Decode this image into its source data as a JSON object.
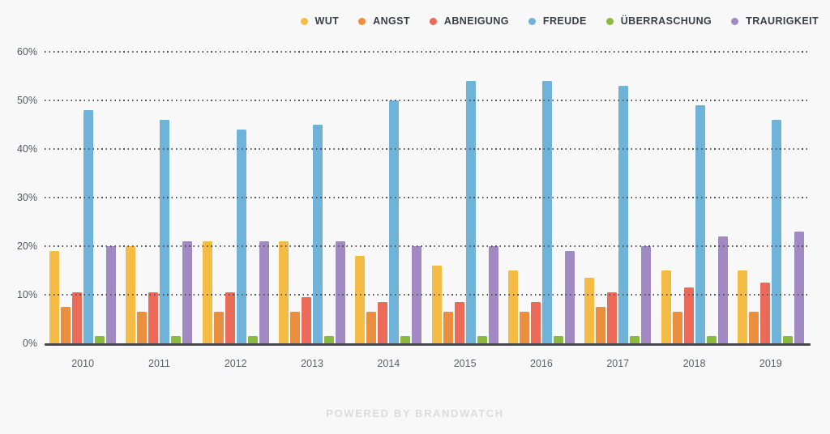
{
  "chart_data": {
    "type": "bar",
    "title": "",
    "xlabel": "",
    "ylabel": "",
    "categories": [
      "2010",
      "2011",
      "2012",
      "2013",
      "2014",
      "2015",
      "2016",
      "2017",
      "2018",
      "2019"
    ],
    "series": [
      {
        "name": "WUT",
        "color": "#F4BC45",
        "values": [
          19,
          20,
          21,
          21,
          18,
          16,
          15,
          13.5,
          15,
          15
        ]
      },
      {
        "name": "ANGST",
        "color": "#EA8F3F",
        "values": [
          7.5,
          6.5,
          6.5,
          6.5,
          6.5,
          6.5,
          6.5,
          7.5,
          6.5,
          6.5
        ]
      },
      {
        "name": "ABNEIGUNG",
        "color": "#EB6A5A",
        "values": [
          10.5,
          10.5,
          10.5,
          9.5,
          8.5,
          8.5,
          8.5,
          10.5,
          11.5,
          12.5
        ]
      },
      {
        "name": "FREUDE",
        "color": "#6FB3D9",
        "values": [
          48,
          46,
          44,
          45,
          50,
          54,
          54,
          53,
          49,
          46
        ]
      },
      {
        "name": "ÜBERRASCHUNG",
        "color": "#8CBA41",
        "values": [
          1.5,
          1.5,
          1.5,
          1.5,
          1.5,
          1.5,
          1.5,
          1.5,
          1.5,
          1.5
        ]
      },
      {
        "name": "TRAURIGKEIT",
        "color": "#A189C2",
        "values": [
          20,
          21,
          21,
          21,
          20,
          20,
          19,
          20,
          22,
          23
        ]
      }
    ],
    "ylim": [
      0,
      60
    ],
    "ytick_step": 10,
    "ytick_suffix": "%",
    "grid": "dotted-horizontal-over-bars",
    "legend_position": "top-right"
  },
  "colors": {
    "background": "#f8f8f8",
    "axis_line": "#47494f",
    "gridline_dots": "#53555b",
    "tick_label": "#55585e",
    "year_label": "#5d6067",
    "legend_label": "#3a3e49",
    "footer_text": "#dcdcdc"
  },
  "footer": {
    "text": "POWERED BY BRANDWATCH"
  }
}
